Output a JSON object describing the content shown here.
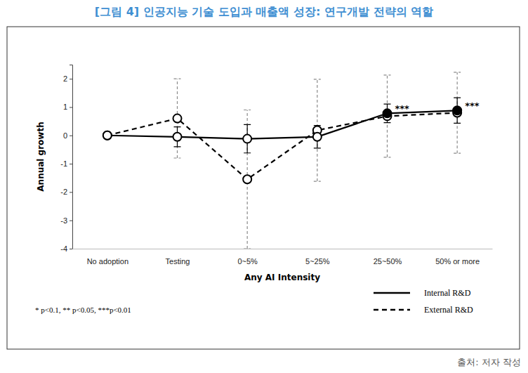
{
  "chart_data": {
    "type": "line",
    "title": "[그림 4] 인공지능 기술 도입과 매출액 성장: 연구개발 전략의 역할",
    "x_label": "Any AI Intensity",
    "y_label": "Annual growth",
    "categories": [
      "No adoption",
      "Testing",
      "0~5%",
      "5~25%",
      "25~50%",
      "50% or more"
    ],
    "series": [
      {
        "name": "Internal R&D",
        "color": "#000000",
        "line_style": "solid",
        "marker": "circle",
        "values": [
          0,
          -0.05,
          -0.12,
          -0.05,
          0.78,
          0.88
        ],
        "errors": [
          0,
          0.35,
          0.5,
          0.4,
          0.33,
          0.45
        ]
      },
      {
        "name": "External R&D",
        "color": "#000000",
        "line_style": "dashed",
        "marker": "circle",
        "values": [
          0,
          0.6,
          -1.55,
          0.18,
          0.68,
          0.8
        ],
        "errors": [
          0,
          1.4,
          2.45,
          1.8,
          1.45,
          1.43
        ]
      }
    ],
    "ylim": [
      -4,
      2.5
    ],
    "yticks": [
      -4,
      -3,
      -2,
      -1,
      0,
      1,
      2
    ],
    "legend": "lower right",
    "annotations": [
      {
        "text": "***",
        "x": "25~50%",
        "series": "Internal R&D"
      },
      {
        "text": "***",
        "x": "50% or more",
        "series": "Internal R&D"
      }
    ],
    "note": "* p<0.1, ** p<0.05, ***p<0.01",
    "source": "출처: 저자 작성"
  }
}
